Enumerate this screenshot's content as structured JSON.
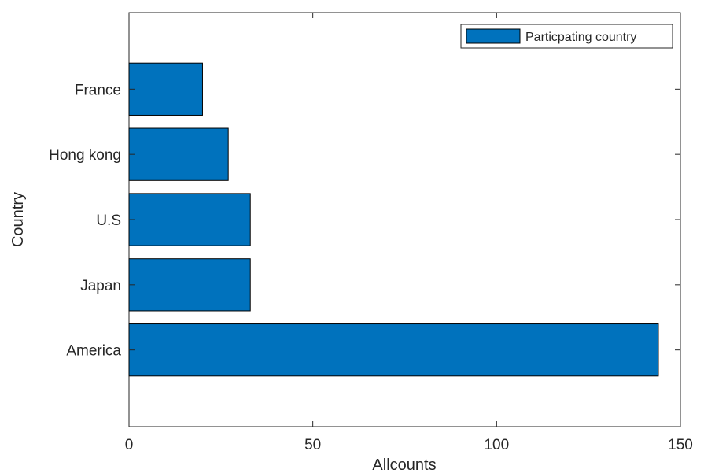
{
  "chart_data": {
    "type": "bar",
    "orientation": "horizontal",
    "categories": [
      "America",
      "Japan",
      "U.S",
      "Hong kong",
      "France"
    ],
    "series": [
      {
        "name": "Particpating country",
        "values": [
          144,
          33,
          33,
          27,
          20
        ]
      }
    ],
    "xlabel": "Allcounts",
    "ylabel": "Country",
    "xlim": [
      0,
      150
    ],
    "xticks": [
      0,
      50,
      100,
      150
    ],
    "grid": false,
    "legend_position": "top-right",
    "colors": {
      "bar": "#0072BD",
      "edge": "#000000",
      "axis": "#262626"
    }
  }
}
